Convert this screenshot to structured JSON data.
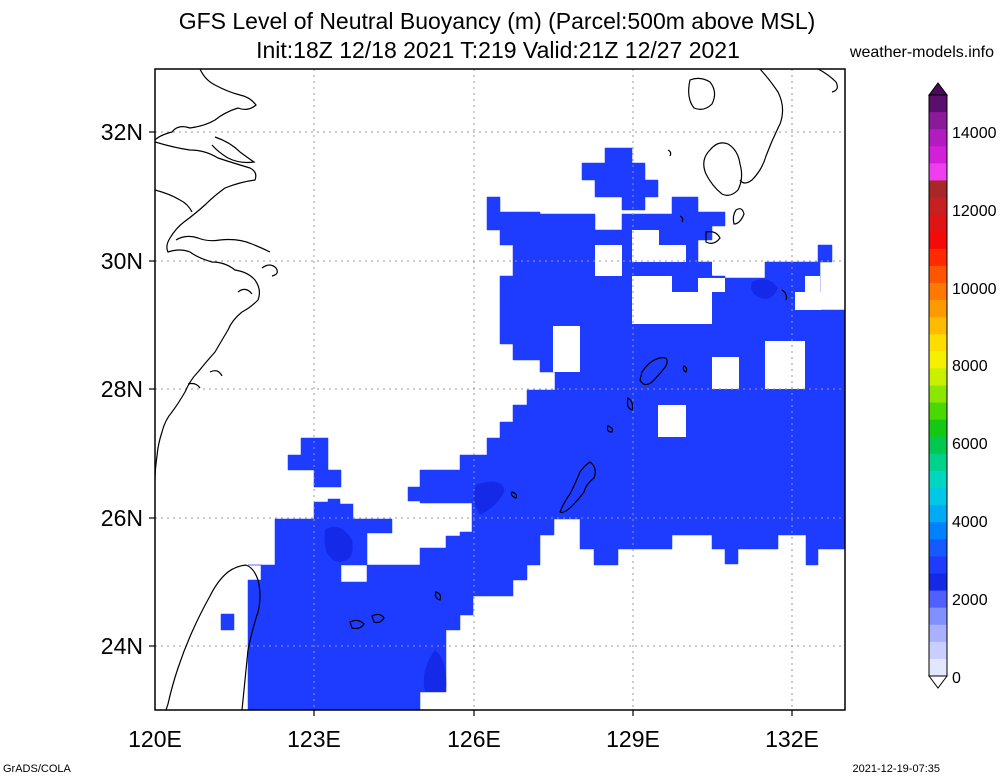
{
  "header": {
    "title_line1": "GFS Level of Neutral Buoyancy (m) (Parcel:500m above MSL)",
    "title_line2": "Init:18Z 12/18 2021 T:219 Valid:21Z 12/27 2021",
    "site": "weather-models.info"
  },
  "footer": {
    "left": "GrADS/COLA",
    "right": "2021-12-19-07:35"
  },
  "map": {
    "lon_labels": [
      "120E",
      "123E",
      "126E",
      "129E",
      "132E"
    ],
    "lat_labels": [
      "32N",
      "30N",
      "28N",
      "26N",
      "24N"
    ],
    "field_color": "#1e3cff",
    "field_color_dark": "#1428e6"
  },
  "colorbar": {
    "labels": [
      "14000",
      "12000",
      "10000",
      "8000",
      "6000",
      "4000",
      "2000",
      "0"
    ],
    "colors": [
      "#5a0f6e",
      "#8b1a9a",
      "#b21bbf",
      "#d41fd9",
      "#ee3ef0",
      "#a82828",
      "#c82020",
      "#e01414",
      "#f50a0a",
      "#ff2a00",
      "#ff5500",
      "#ff7800",
      "#ff9900",
      "#ffbb00",
      "#ffdd00",
      "#f5f000",
      "#c8f000",
      "#8ce600",
      "#4bd700",
      "#14c814",
      "#00c850",
      "#00d28c",
      "#00d7c3",
      "#00c8e6",
      "#00aaf5",
      "#0082ff",
      "#145aff",
      "#1e3cff",
      "#1428e6",
      "#5060ff",
      "#8090ff",
      "#a8b0ff",
      "#c8ceff",
      "#e2e6ff"
    ]
  }
}
